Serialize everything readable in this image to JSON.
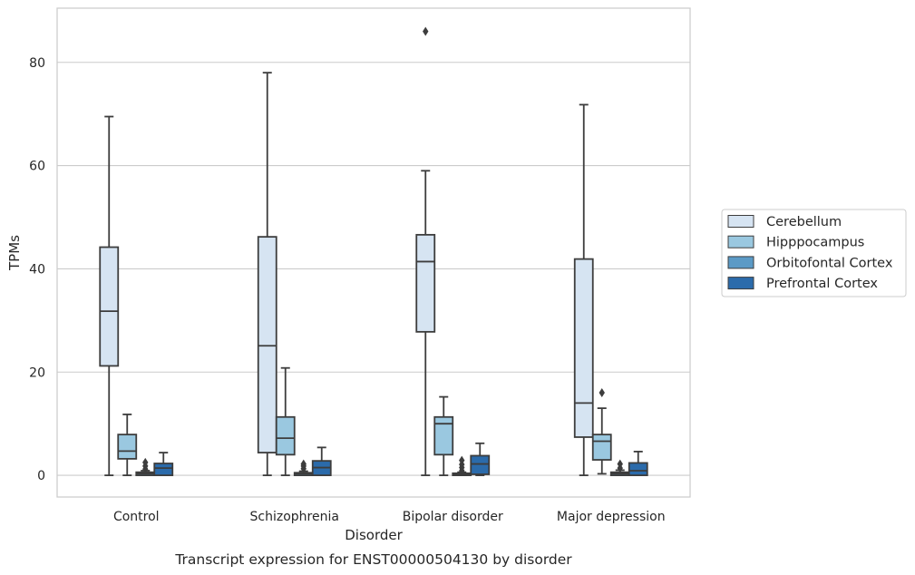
{
  "caption": "Transcript expression for ENST00000504130 by disorder",
  "chart_data": {
    "type": "box",
    "xlabel": "Disorder",
    "ylabel": "TPMs",
    "ylim": [
      -4.2,
      90.5
    ],
    "yticks": [
      0,
      20,
      40,
      60,
      80
    ],
    "grid": "horizontal",
    "legend_position": "right",
    "categories": [
      "Control",
      "Schizophrenia",
      "Bipolar disorder",
      "Major depression"
    ],
    "series": [
      {
        "name": "Cerebellum",
        "color": "#d6e4f2",
        "boxes": [
          {
            "whislo": 0,
            "q1": 21.2,
            "med": 31.8,
            "q3": 44.2,
            "whishi": 69.5,
            "fliers": []
          },
          {
            "whislo": 0,
            "q1": 4.4,
            "med": 25.1,
            "q3": 46.2,
            "whishi": 78.0,
            "fliers": []
          },
          {
            "whislo": 0,
            "q1": 27.8,
            "med": 41.4,
            "q3": 46.6,
            "whishi": 59.0,
            "fliers": [
              86.0
            ]
          },
          {
            "whislo": 0,
            "q1": 7.4,
            "med": 14.0,
            "q3": 41.9,
            "whishi": 71.8,
            "fliers": []
          }
        ]
      },
      {
        "name": "Hipppocampus",
        "color": "#9ac8e0",
        "boxes": [
          {
            "whislo": 0,
            "q1": 3.2,
            "med": 4.7,
            "q3": 7.9,
            "whishi": 11.8,
            "fliers": []
          },
          {
            "whislo": 0,
            "q1": 4.0,
            "med": 7.2,
            "q3": 11.3,
            "whishi": 20.8,
            "fliers": []
          },
          {
            "whislo": 0,
            "q1": 4.0,
            "med": 10.0,
            "q3": 11.3,
            "whishi": 15.2,
            "fliers": []
          },
          {
            "whislo": 0.3,
            "q1": 3.0,
            "med": 6.6,
            "q3": 7.9,
            "whishi": 13.0,
            "fliers": [
              16.0
            ]
          }
        ]
      },
      {
        "name": "Orbitofontal Cortex",
        "color": "#5b9ac6",
        "boxes": [
          {
            "whislo": 0,
            "q1": 0,
            "med": 0.3,
            "q3": 0.6,
            "whishi": 0.9,
            "fliers": [
              1.2,
              1.8,
              2.5
            ]
          },
          {
            "whislo": 0,
            "q1": 0,
            "med": 0.3,
            "q3": 0.5,
            "whishi": 0.8,
            "fliers": [
              1.3,
              1.8,
              2.2
            ]
          },
          {
            "whislo": 0,
            "q1": 0,
            "med": 0.2,
            "q3": 0.4,
            "whishi": 0.6,
            "fliers": [
              0.9,
              1.5,
              2.1,
              2.9
            ]
          },
          {
            "whislo": 0,
            "q1": 0,
            "med": 0.3,
            "q3": 0.6,
            "whishi": 1.0,
            "fliers": [
              1.4,
              2.2
            ]
          }
        ]
      },
      {
        "name": "Prefrontal Cortex",
        "color": "#2b6bab",
        "boxes": [
          {
            "whislo": 0,
            "q1": 0,
            "med": 1.4,
            "q3": 2.3,
            "whishi": 4.4,
            "fliers": []
          },
          {
            "whislo": 0,
            "q1": 0,
            "med": 1.5,
            "q3": 2.8,
            "whishi": 5.4,
            "fliers": []
          },
          {
            "whislo": 0,
            "q1": 0.2,
            "med": 2.2,
            "q3": 3.8,
            "whishi": 6.2,
            "fliers": []
          },
          {
            "whislo": 0,
            "q1": 0,
            "med": 0.9,
            "q3": 2.4,
            "whishi": 4.6,
            "fliers": []
          }
        ]
      }
    ]
  }
}
